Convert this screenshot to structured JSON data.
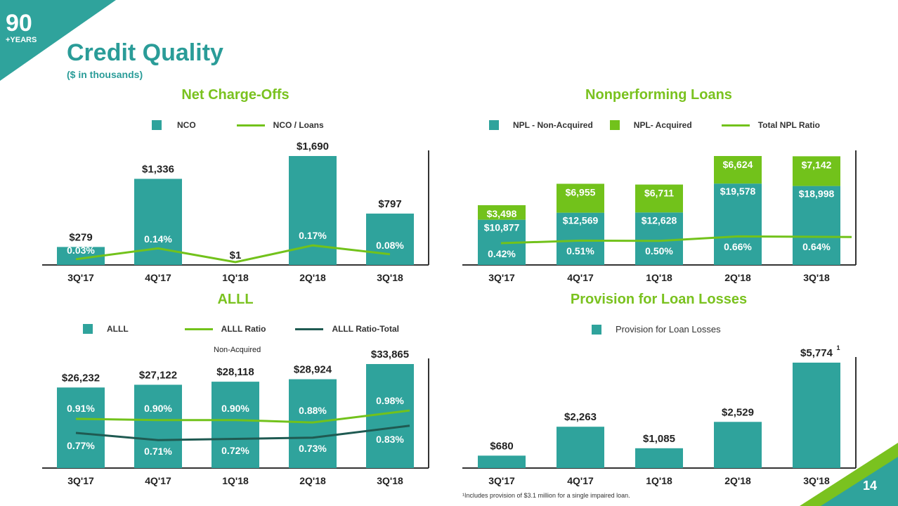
{
  "header": {
    "logo_number": "90",
    "logo_text": "+YEARS",
    "title": "Credit Quality",
    "subtitle": "($ in thousands)",
    "page_number": "14",
    "footnote": "¹Includes provision of $3.1 million for a single impaired loan.",
    "non_acquired_note": "Non-Acquired"
  },
  "colors": {
    "teal": "#2fa39c",
    "green": "#72c21b",
    "dark": "#1f5a52",
    "title_green": "#7ac21f"
  },
  "legends": {
    "nco": [
      "NCO",
      "NCO / Loans"
    ],
    "npl": [
      "NPL - Non-Acquired",
      "NPL- Acquired",
      "Total NPL Ratio"
    ],
    "alll": [
      "ALLL",
      "ALLL Ratio",
      "ALLL Ratio-Total"
    ],
    "provision": [
      "Provision for Loan Losses"
    ]
  },
  "chart_data": [
    {
      "id": "nco",
      "type": "bar",
      "title": "Net Charge-Offs",
      "categories": [
        "3Q'17",
        "4Q'17",
        "1Q'18",
        "2Q'18",
        "3Q'18"
      ],
      "series": [
        {
          "name": "NCO",
          "values": [
            279,
            1336,
            1,
            1690,
            797
          ],
          "labels": [
            "$279",
            "$1,336",
            "$1",
            "$1,690",
            "$797"
          ]
        },
        {
          "name": "NCO / Loans",
          "type": "line",
          "values": [
            0.03,
            0.14,
            0.0,
            0.17,
            0.08
          ],
          "labels": [
            "0.03%",
            "0.14%",
            "",
            "0.17%",
            "0.08%"
          ]
        }
      ]
    },
    {
      "id": "npl",
      "type": "bar",
      "title": "Nonperforming Loans",
      "categories": [
        "3Q'17",
        "4Q'17",
        "1Q'18",
        "2Q'18",
        "3Q'18"
      ],
      "series": [
        {
          "name": "NPL - Non-Acquired",
          "values": [
            10877,
            12569,
            12628,
            19578,
            18998
          ],
          "labels": [
            "$10,877",
            "$12,569",
            "$12,628",
            "$19,578",
            "$18,998"
          ]
        },
        {
          "name": "NPL- Acquired",
          "values": [
            3498,
            6955,
            6711,
            6624,
            7142
          ],
          "labels": [
            "$3,498",
            "$6,955",
            "$6,711",
            "$6,624",
            "$7,142"
          ]
        },
        {
          "name": "Total NPL Ratio",
          "type": "line",
          "values": [
            0.42,
            0.51,
            0.5,
            0.66,
            0.64
          ],
          "labels": [
            "0.42%",
            "0.51%",
            "0.50%",
            "0.66%",
            "0.64%"
          ]
        }
      ]
    },
    {
      "id": "alll",
      "type": "bar",
      "title": "ALLL",
      "categories": [
        "3Q'17",
        "4Q'17",
        "1Q'18",
        "2Q'18",
        "3Q'18"
      ],
      "series": [
        {
          "name": "ALLL",
          "values": [
            26232,
            27122,
            28118,
            28924,
            33865
          ],
          "labels": [
            "$26,232",
            "$27,122",
            "$28,118",
            "$28,924",
            "$33,865"
          ]
        },
        {
          "name": "ALLL Ratio",
          "type": "line",
          "values": [
            0.91,
            0.9,
            0.9,
            0.88,
            0.98
          ],
          "labels": [
            "0.91%",
            "0.90%",
            "0.90%",
            "0.88%",
            "0.98%"
          ]
        },
        {
          "name": "ALLL Ratio-Total",
          "type": "line",
          "values": [
            0.77,
            0.71,
            0.72,
            0.73,
            0.83
          ],
          "labels": [
            "0.77%",
            "0.71%",
            "0.72%",
            "0.73%",
            "0.83%"
          ]
        }
      ]
    },
    {
      "id": "provision",
      "type": "bar",
      "title": "Provision for Loan Losses",
      "categories": [
        "3Q'17",
        "4Q'17",
        "1Q'18",
        "2Q'18",
        "3Q'18"
      ],
      "series": [
        {
          "name": "Provision for Loan Losses",
          "values": [
            680,
            2263,
            1085,
            2529,
            5774
          ],
          "labels": [
            "$680",
            "$2,263",
            "$1,085",
            "$2,529",
            "$5,774"
          ],
          "footnote_marker": [
            "",
            "",
            "",
            "",
            "1"
          ]
        }
      ]
    }
  ]
}
